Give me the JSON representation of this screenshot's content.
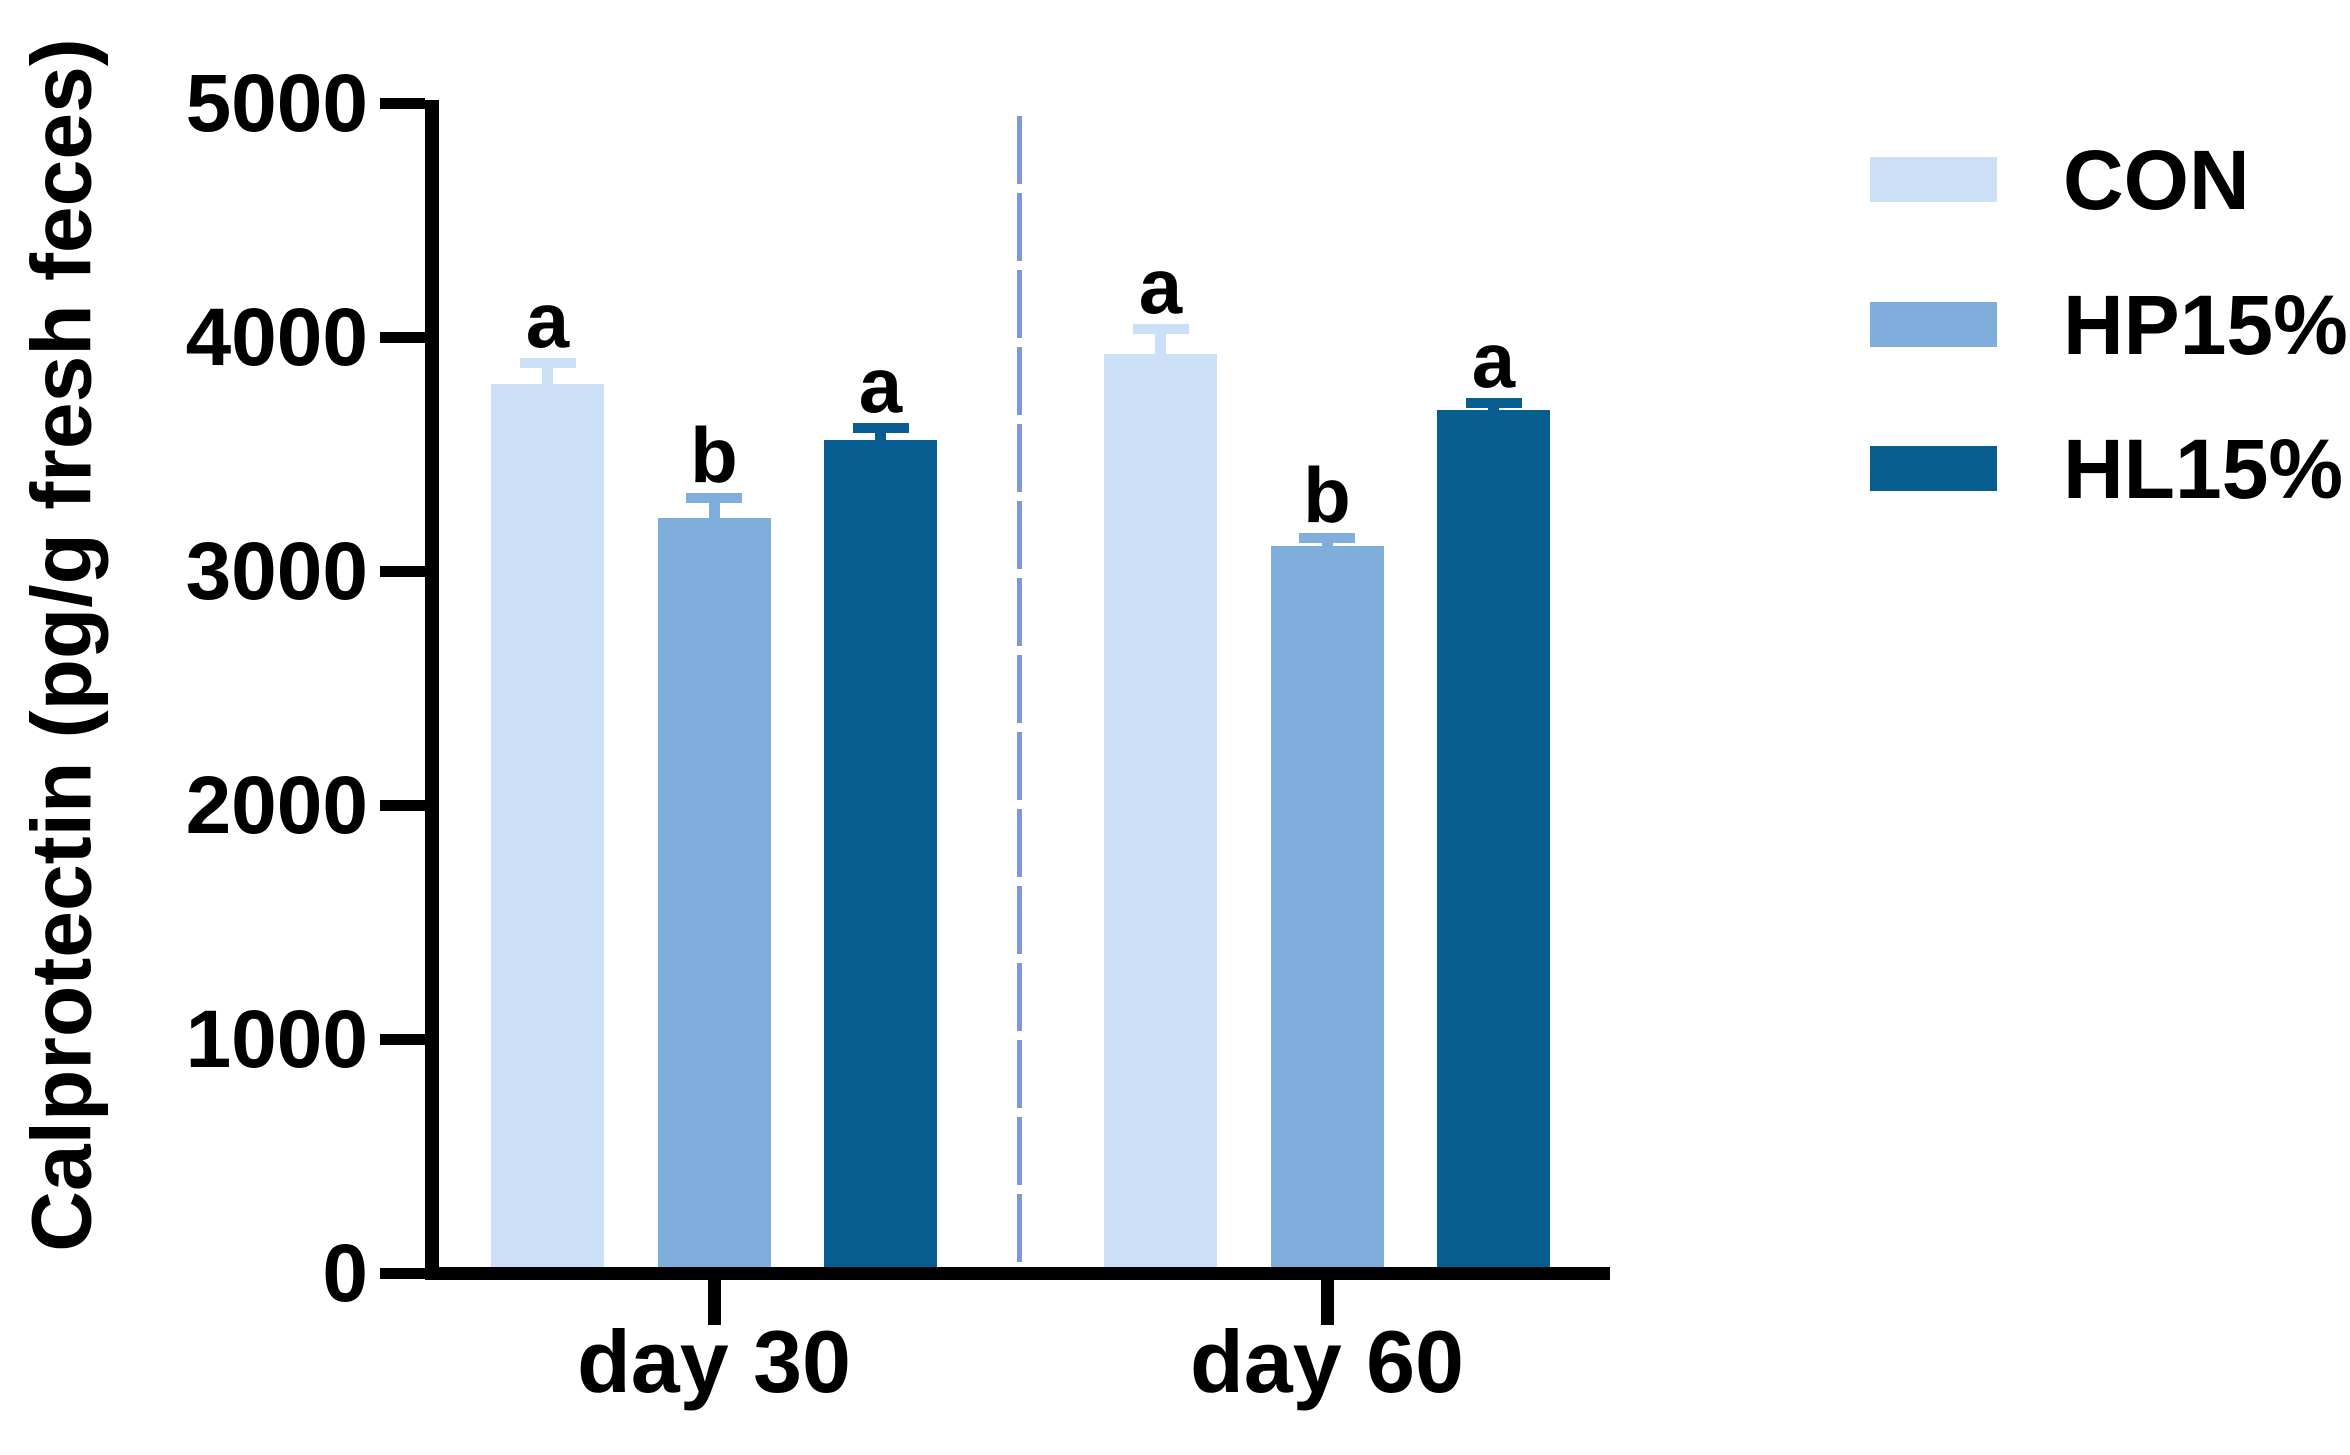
{
  "chart_data": {
    "type": "bar",
    "title": "",
    "ylabel": "Calprotectin (pg/g fresh feces)",
    "xlabel": "",
    "categories": [
      "day 30",
      "day 60"
    ],
    "yticks": [
      "0",
      "1000",
      "2000",
      "3000",
      "4000",
      "5000"
    ],
    "ytick_values": [
      0,
      1000,
      2000,
      3000,
      4000,
      5000
    ],
    "ylim": [
      0,
      5000
    ],
    "grid": false,
    "legend_position": "right",
    "series": [
      {
        "name": "CON",
        "color": "#CBE0F6",
        "values": [
          3800,
          3930
        ],
        "sem": [
          90,
          105
        ],
        "letters": [
          "a",
          "a"
        ]
      },
      {
        "name": "HP15%",
        "color": "#7FAEDC",
        "values": [
          3230,
          3110
        ],
        "sem": [
          85,
          35
        ],
        "letters": [
          "b",
          "b"
        ]
      },
      {
        "name": "HL15%",
        "color": "#085D90",
        "values": [
          3560,
          3690
        ],
        "sem": [
          55,
          30
        ],
        "letters": [
          "a",
          "a"
        ]
      }
    ],
    "separator_line": {
      "style": "long-dash",
      "color": "#8098DB",
      "position": "between day 30 and day 60 groups"
    },
    "axis_color": "#000000"
  }
}
